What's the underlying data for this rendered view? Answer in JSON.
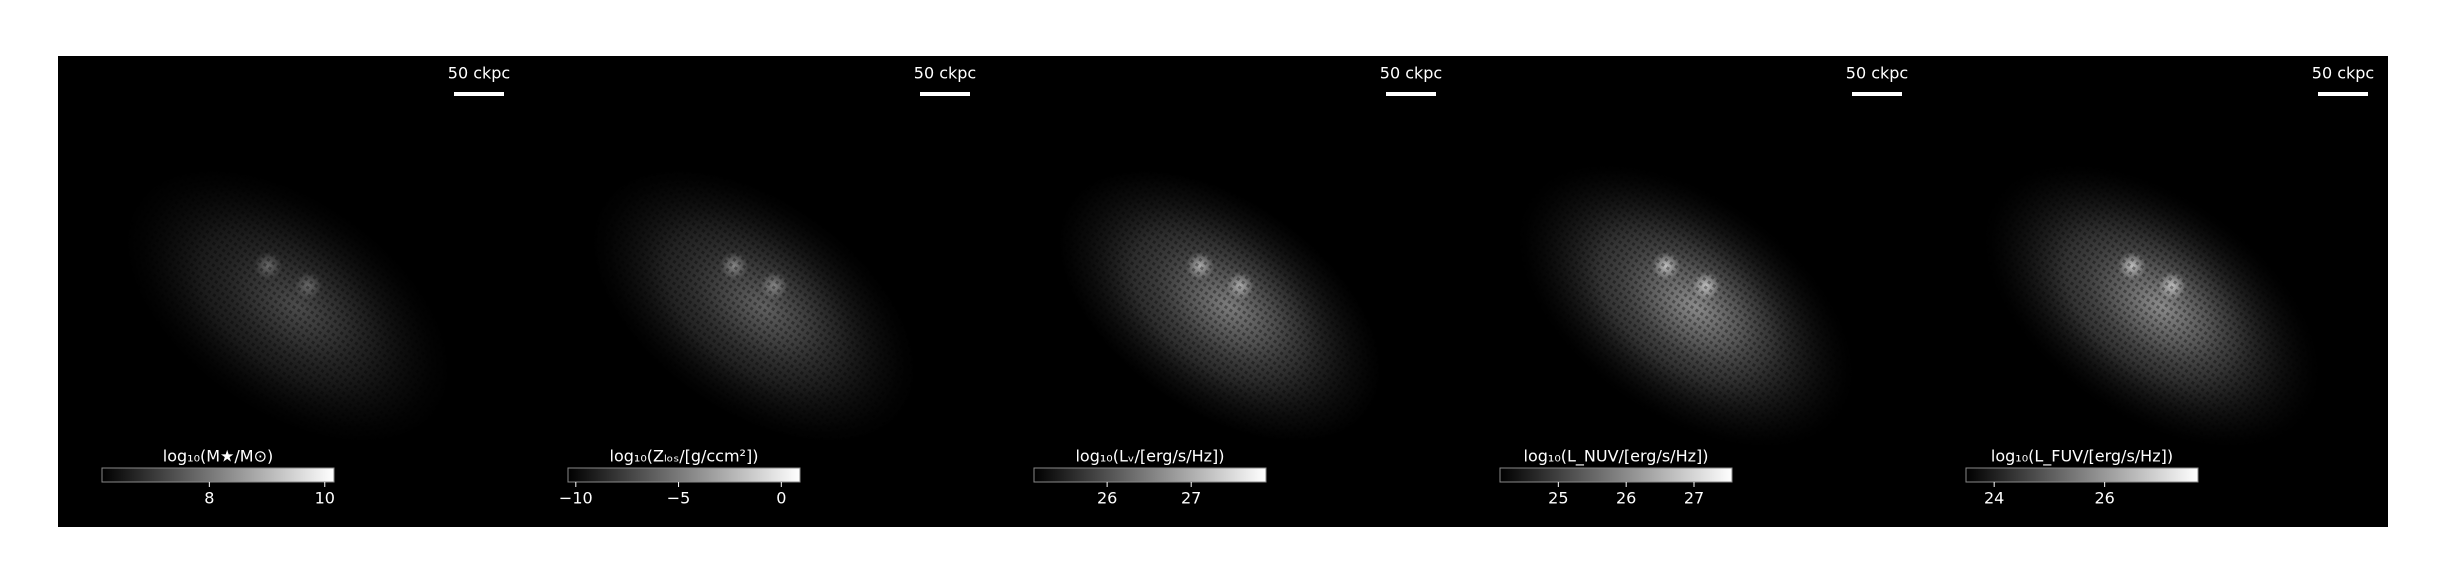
{
  "chart_data": [
    {
      "type": "image",
      "colorbar_label": "log₁₀(M★/M⊙)",
      "clim": [
        6.14,
        10.16
      ],
      "cticks": [
        8,
        10
      ],
      "scale_bar": "50 ckpc"
    },
    {
      "type": "image",
      "colorbar_label": "log₁₀(Zₗₒₛ/[g/ccm²])",
      "clim": [
        -10.38,
        0.91
      ],
      "cticks": [
        {
          "value": -10,
          "label": "−10"
        },
        {
          "value": -5,
          "label": "−5"
        },
        0
      ],
      "scale_bar": "50 ckpc"
    },
    {
      "type": "image",
      "colorbar_label": "log₁₀(Lᵥ/[erg/s/Hz])",
      "clim": [
        25.13,
        27.89
      ],
      "cticks": [
        26,
        27
      ],
      "scale_bar": "50 ckpc"
    },
    {
      "type": "image",
      "colorbar_label": "log₁₀(L_NUV/[erg/s/Hz])",
      "clim": [
        24.14,
        27.56
      ],
      "cticks": [
        25,
        26,
        27
      ],
      "scale_bar": "50 ckpc"
    },
    {
      "type": "image",
      "colorbar_label": "log₁₀(L_FUV/[erg/s/Hz])",
      "clim": [
        23.49,
        27.69
      ],
      "cticks": [
        24,
        26
      ],
      "scale_bar": "50 ckpc"
    }
  ]
}
